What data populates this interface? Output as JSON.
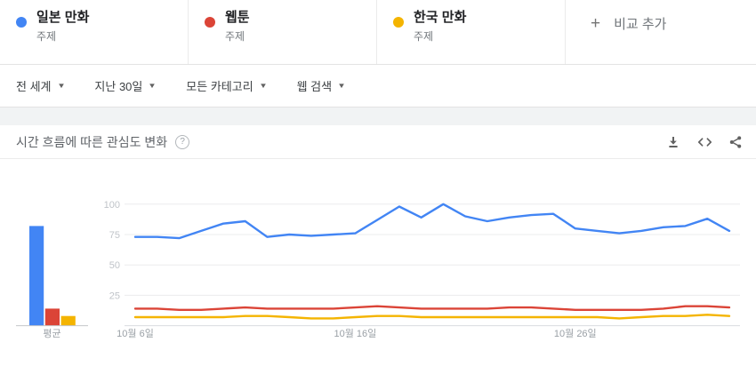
{
  "terms": [
    {
      "label": "일본 만화",
      "type": "주제",
      "color": "#4285f4"
    },
    {
      "label": "웹툰",
      "type": "주제",
      "color": "#db4437"
    },
    {
      "label": "한국 만화",
      "type": "주제",
      "color": "#f4b400"
    }
  ],
  "add_comparison": {
    "plus": "+",
    "label": "비교 추가"
  },
  "filters": [
    {
      "label": "전 세계"
    },
    {
      "label": "지난 30일"
    },
    {
      "label": "모든 카테고리"
    },
    {
      "label": "웹 검색"
    }
  ],
  "widget": {
    "title": "시간 흐름에 따른 관심도 변화",
    "help": "?",
    "actions": [
      "download-icon",
      "embed-icon",
      "share-icon"
    ]
  },
  "chart_data": {
    "type": "line",
    "title": "시간 흐름에 따른 관심도 변화",
    "n_points": 28,
    "x_tick_labels": [
      "10월 6일",
      "10월 16일",
      "10월 26일"
    ],
    "x_tick_positions": [
      0,
      10,
      20
    ],
    "y_ticks": [
      25,
      50,
      75,
      100
    ],
    "ylim": [
      0,
      100
    ],
    "grid": true,
    "legend": "none",
    "series": [
      {
        "name": "일본 만화",
        "color": "#4285f4",
        "values": [
          73,
          73,
          72,
          78,
          84,
          86,
          73,
          75,
          74,
          75,
          76,
          87,
          98,
          89,
          100,
          90,
          86,
          89,
          91,
          92,
          80,
          78,
          76,
          78,
          81,
          82,
          88,
          78
        ]
      },
      {
        "name": "웹툰",
        "color": "#db4437",
        "values": [
          14,
          14,
          13,
          13,
          14,
          15,
          14,
          14,
          14,
          14,
          15,
          16,
          15,
          14,
          14,
          14,
          14,
          15,
          15,
          14,
          13,
          13,
          13,
          13,
          14,
          16,
          16,
          15
        ]
      },
      {
        "name": "한국 만화",
        "color": "#f4b400",
        "values": [
          7,
          7,
          7,
          7,
          7,
          8,
          8,
          7,
          6,
          6,
          7,
          8,
          8,
          7,
          7,
          7,
          7,
          7,
          7,
          7,
          7,
          7,
          6,
          7,
          8,
          8,
          9,
          8
        ]
      }
    ],
    "average_bars": {
      "label": "평균",
      "values": [
        82,
        14,
        8
      ]
    }
  }
}
